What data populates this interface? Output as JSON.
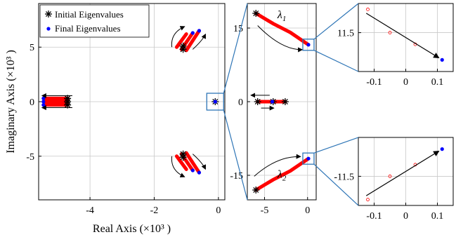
{
  "chart_data": [
    {
      "id": "main",
      "type": "scatter",
      "xlabel": "Real Axis (×10³ )",
      "ylabel": "Imaginary Axis (×10³ )",
      "xlim": [
        -5.6,
        0.2
      ],
      "ylim": [
        -9,
        9
      ],
      "xticks": [
        -4,
        -2,
        0
      ],
      "xtick_labels": [
        "-4",
        "-2",
        "0"
      ],
      "yticks": [
        -5,
        0,
        5
      ],
      "ytick_labels": [
        "-5",
        "0",
        "5"
      ],
      "grid": true,
      "legend": {
        "placement": "top-left",
        "entries": [
          "Initial Eigenvalues",
          "Final Eigenvalues"
        ]
      },
      "series": [
        {
          "name": "Initial Eigenvalues",
          "marker": "asterisk",
          "color": "#000000",
          "points": [
            [
              -4.7,
              0.3
            ],
            [
              -4.7,
              -0.3
            ],
            [
              -4.7,
              0.0
            ],
            [
              -1.1,
              4.8
            ],
            [
              -1.1,
              -4.8
            ],
            [
              -1.1,
              5.1
            ],
            [
              -1.1,
              -5.1
            ],
            [
              -0.1,
              0.0
            ]
          ]
        },
        {
          "name": "Final Eigenvalues",
          "marker": "dot",
          "color": "#0000ff",
          "points": [
            [
              -5.45,
              0.3
            ],
            [
              -5.45,
              0.0
            ],
            [
              -5.45,
              -0.3
            ],
            [
              -0.8,
              6.3
            ],
            [
              -0.6,
              6.5
            ],
            [
              -0.8,
              -6.3
            ],
            [
              -0.6,
              -6.5
            ],
            [
              -0.1,
              0.0
            ]
          ]
        }
      ],
      "trajectories": [
        {
          "from": [
            -4.7,
            0.3
          ],
          "to": [
            -5.45,
            0.3
          ]
        },
        {
          "from": [
            -4.7,
            0.0
          ],
          "to": [
            -5.45,
            0.0
          ]
        },
        {
          "from": [
            -4.7,
            -0.3
          ],
          "to": [
            -5.45,
            -0.3
          ]
        },
        {
          "from": [
            -1.3,
            5.0
          ],
          "to": [
            -1.0,
            6.2
          ]
        },
        {
          "from": [
            -1.15,
            4.8
          ],
          "to": [
            -0.8,
            6.3
          ]
        },
        {
          "from": [
            -1.0,
            4.7
          ],
          "to": [
            -0.6,
            6.5
          ]
        },
        {
          "from": [
            -1.3,
            -5.0
          ],
          "to": [
            -1.0,
            -6.2
          ]
        },
        {
          "from": [
            -1.15,
            -4.8
          ],
          "to": [
            -0.8,
            -6.3
          ]
        },
        {
          "from": [
            -1.0,
            -4.7
          ],
          "to": [
            -0.6,
            -6.5
          ]
        }
      ]
    },
    {
      "id": "zoom1",
      "type": "scatter",
      "xlim": [
        -7,
        1
      ],
      "ylim": [
        -20,
        20
      ],
      "xticks": [
        -5,
        0
      ],
      "xtick_labels": [
        "-5",
        "0"
      ],
      "yticks": [
        -15,
        0,
        15
      ],
      "ytick_labels": [
        "-15",
        "0",
        "15"
      ],
      "grid": true,
      "annotations": [
        "λ1",
        "λ2"
      ],
      "series": [
        {
          "name": "Initial Eigenvalues",
          "marker": "asterisk",
          "color": "#000000",
          "points": [
            [
              -6,
              18
            ],
            [
              -6,
              -18
            ],
            [
              -5.8,
              0
            ],
            [
              -4,
              0
            ],
            [
              -2.6,
              0
            ]
          ]
        },
        {
          "name": "Final Eigenvalues",
          "marker": "dot",
          "color": "#0000ff",
          "points": [
            [
              0.1,
              11.6
            ],
            [
              0.1,
              -11.6
            ],
            [
              -4.1,
              0
            ]
          ]
        }
      ],
      "trajectories": [
        {
          "points": [
            [
              -6,
              18
            ],
            [
              -4,
              15.9
            ],
            [
              -2,
              14.1
            ],
            [
              0.1,
              11.6
            ]
          ]
        },
        {
          "points": [
            [
              -6,
              -18
            ],
            [
              -4,
              -15.9
            ],
            [
              -2,
              -14.1
            ],
            [
              0.1,
              -11.6
            ]
          ]
        },
        {
          "points": [
            [
              -5.8,
              0
            ],
            [
              -4.1,
              0
            ]
          ]
        },
        {
          "points": [
            [
              -2.6,
              0
            ],
            [
              -4.1,
              0
            ]
          ]
        }
      ]
    },
    {
      "id": "zoom2",
      "type": "scatter",
      "xlim": [
        -0.15,
        0.15
      ],
      "ylim": [
        11.3,
        11.65
      ],
      "xticks": [
        -0.1,
        0,
        0.1
      ],
      "xtick_labels": [
        "-0.1",
        "0",
        "0.1"
      ],
      "yticks": [
        11.5
      ],
      "ytick_labels": [
        "11.5"
      ],
      "grid": true,
      "series": [
        {
          "name": "Trajectory",
          "marker": "circle",
          "color": "#ff0000",
          "points": [
            [
              -0.12,
              11.62
            ],
            [
              -0.05,
              11.5
            ],
            [
              0.03,
              11.44
            ]
          ]
        },
        {
          "name": "Final Eigenvalues",
          "marker": "dot",
          "color": "#0000ff",
          "points": [
            [
              0.115,
              11.36
            ]
          ]
        }
      ]
    },
    {
      "id": "zoom3",
      "type": "scatter",
      "xlim": [
        -0.15,
        0.15
      ],
      "ylim": [
        -11.65,
        -11.3
      ],
      "xticks": [
        -0.1,
        0,
        0.1
      ],
      "xtick_labels": [
        "-0.1",
        "0",
        "0.1"
      ],
      "yticks": [
        -11.5
      ],
      "ytick_labels": [
        "-11.5"
      ],
      "grid": true,
      "series": [
        {
          "name": "Trajectory",
          "marker": "circle",
          "color": "#ff0000",
          "points": [
            [
              -0.12,
              -11.62
            ],
            [
              -0.05,
              -11.5
            ],
            [
              0.03,
              -11.44
            ]
          ]
        },
        {
          "name": "Final Eigenvalues",
          "marker": "dot",
          "color": "#0000ff",
          "points": [
            [
              0.115,
              -11.36
            ]
          ]
        }
      ]
    }
  ],
  "colors": {
    "trajectory": "#ff0000",
    "final": "#0000ff",
    "initial": "#000000",
    "zoom_box": "#2e75b6"
  }
}
